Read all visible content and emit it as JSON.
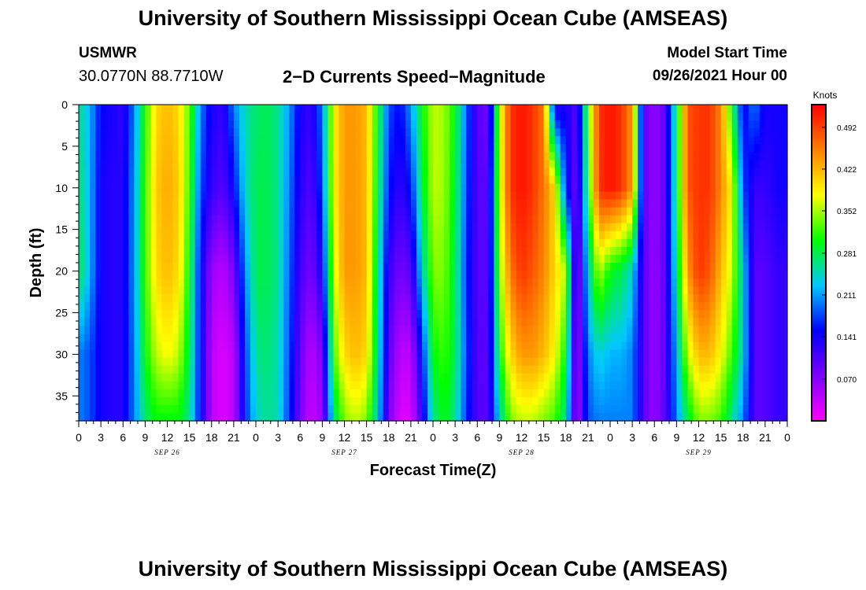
{
  "page": {
    "title": "University of Southern Mississippi Ocean Cube (AMSEAS)",
    "footer_title": "University of Southern Mississippi Ocean Cube (AMSEAS)",
    "station": "USMWR",
    "location": "30.0770N  88.7710W",
    "product": "2−D Currents Speed−Magnitude",
    "model_label": "Model Start Time",
    "model_time": "09/26/2021 Hour 00"
  },
  "chart_data": {
    "type": "heatmap",
    "title": "2-D Currents Speed-Magnitude",
    "xlabel": "Forecast Time(Z)",
    "ylabel": "Depth (ft)",
    "x_unit": "hours since 09/26/2021 00Z",
    "xlim": [
      0,
      96
    ],
    "ylim": [
      0,
      38
    ],
    "x_tick_values": [
      0,
      3,
      6,
      9,
      12,
      15,
      18,
      21,
      24,
      27,
      30,
      33,
      36,
      39,
      42,
      45,
      48,
      51,
      54,
      57,
      60,
      63,
      66,
      69,
      72,
      75,
      78,
      81,
      84,
      87,
      90,
      93,
      96
    ],
    "x_tick_labels": [
      "0",
      "3",
      "6",
      "9",
      "12",
      "15",
      "18",
      "21",
      "0",
      "3",
      "6",
      "9",
      "12",
      "15",
      "18",
      "21",
      "0",
      "3",
      "6",
      "9",
      "12",
      "15",
      "18",
      "21",
      "0",
      "3",
      "6",
      "9",
      "12",
      "15",
      "18",
      "21",
      "0"
    ],
    "date_labels": [
      {
        "hour": 12,
        "label": "SEP 26"
      },
      {
        "hour": 36,
        "label": "SEP 27"
      },
      {
        "hour": 60,
        "label": "SEP 28"
      },
      {
        "hour": 84,
        "label": "SEP 29"
      }
    ],
    "y_tick_values": [
      0,
      5,
      10,
      15,
      20,
      25,
      30,
      35
    ],
    "y_tick_labels": [
      "0",
      "5",
      "10",
      "15",
      "20",
      "25",
      "30",
      "35"
    ],
    "colorbar": {
      "title": "Knots",
      "range": [
        0,
        0.53
      ],
      "tick_values": [
        0.492,
        0.422,
        0.352,
        0.281,
        0.211,
        0.141,
        0.07
      ],
      "tick_labels": [
        "0.492",
        "0.422",
        "0.352",
        "0.281",
        "0.211",
        "0.141",
        "0.070"
      ],
      "colors": [
        "#ff00ff",
        "#7f00ff",
        "#0000ff",
        "#00c8ff",
        "#00ff00",
        "#ffff00",
        "#ff8000",
        "#ff0000"
      ]
    },
    "depths_ft": [
      0,
      10,
      20,
      30,
      38
    ],
    "time_hours": [
      0,
      1.5,
      3,
      4.5,
      6,
      7.5,
      9,
      10.5,
      12,
      13.5,
      15,
      16.5,
      18,
      19.5,
      21,
      22.5,
      24,
      25.5,
      27,
      28.5,
      30,
      31.5,
      33,
      34.5,
      36,
      37.5,
      39,
      40.5,
      42,
      43.5,
      45,
      46.5,
      48,
      49.5,
      51,
      52.5,
      54,
      55.5,
      57,
      58.5,
      60,
      61.5,
      63,
      64.5,
      66,
      67.5,
      69,
      70.5,
      72,
      73.5,
      75,
      76.5,
      78,
      79.5,
      81,
      82.5,
      84,
      85.5,
      87,
      88.5,
      90,
      91.5,
      93,
      94.5,
      96
    ],
    "speed_knots": [
      [
        0.26,
        0.22,
        0.15,
        0.14,
        0.12,
        0.2,
        0.31,
        0.4,
        0.42,
        0.4,
        0.33,
        0.2,
        0.14,
        0.12,
        0.2,
        0.25,
        0.27,
        0.28,
        0.26,
        0.21,
        0.14,
        0.12,
        0.2,
        0.38,
        0.44,
        0.44,
        0.42,
        0.3,
        0.18,
        0.15,
        0.21,
        0.3,
        0.36,
        0.35,
        0.3,
        0.19,
        0.1,
        0.08,
        0.36,
        0.5,
        0.52,
        0.5,
        0.46,
        0.12,
        0.14,
        0.1,
        0.32,
        0.5,
        0.52,
        0.5,
        0.44,
        0.1,
        0.06,
        0.1,
        0.28,
        0.48,
        0.5,
        0.5,
        0.45,
        0.3,
        0.14,
        0.2,
        0.14,
        0.14,
        0.14
      ],
      [
        0.27,
        0.22,
        0.14,
        0.13,
        0.13,
        0.21,
        0.32,
        0.41,
        0.43,
        0.41,
        0.32,
        0.18,
        0.12,
        0.1,
        0.15,
        0.24,
        0.28,
        0.28,
        0.26,
        0.2,
        0.13,
        0.1,
        0.18,
        0.38,
        0.44,
        0.44,
        0.42,
        0.29,
        0.16,
        0.12,
        0.16,
        0.28,
        0.36,
        0.35,
        0.29,
        0.18,
        0.1,
        0.1,
        0.36,
        0.5,
        0.52,
        0.5,
        0.46,
        0.4,
        0.16,
        0.08,
        0.3,
        0.5,
        0.52,
        0.5,
        0.44,
        0.1,
        0.06,
        0.1,
        0.28,
        0.48,
        0.5,
        0.5,
        0.45,
        0.38,
        0.18,
        0.12,
        0.12,
        0.14,
        0.14
      ],
      [
        0.28,
        0.22,
        0.14,
        0.13,
        0.13,
        0.21,
        0.32,
        0.4,
        0.42,
        0.4,
        0.3,
        0.15,
        0.06,
        0.04,
        0.08,
        0.2,
        0.28,
        0.28,
        0.26,
        0.19,
        0.11,
        0.08,
        0.14,
        0.36,
        0.44,
        0.44,
        0.42,
        0.27,
        0.12,
        0.08,
        0.1,
        0.24,
        0.34,
        0.34,
        0.28,
        0.17,
        0.1,
        0.1,
        0.34,
        0.46,
        0.5,
        0.48,
        0.45,
        0.4,
        0.36,
        0.05,
        0.24,
        0.36,
        0.3,
        0.28,
        0.24,
        0.1,
        0.06,
        0.1,
        0.26,
        0.44,
        0.5,
        0.48,
        0.42,
        0.36,
        0.24,
        0.1,
        0.1,
        0.12,
        0.12
      ],
      [
        0.2,
        0.18,
        0.14,
        0.13,
        0.13,
        0.2,
        0.3,
        0.36,
        0.38,
        0.36,
        0.28,
        0.15,
        0.04,
        0.02,
        0.04,
        0.17,
        0.26,
        0.27,
        0.25,
        0.18,
        0.09,
        0.04,
        0.08,
        0.32,
        0.4,
        0.42,
        0.4,
        0.26,
        0.1,
        0.04,
        0.04,
        0.16,
        0.3,
        0.32,
        0.28,
        0.18,
        0.1,
        0.1,
        0.3,
        0.4,
        0.44,
        0.44,
        0.42,
        0.38,
        0.3,
        0.04,
        0.2,
        0.24,
        0.22,
        0.22,
        0.2,
        0.1,
        0.06,
        0.1,
        0.22,
        0.36,
        0.42,
        0.42,
        0.38,
        0.32,
        0.24,
        0.1,
        0.1,
        0.12,
        0.12
      ],
      [
        0.2,
        0.18,
        0.14,
        0.13,
        0.13,
        0.2,
        0.27,
        0.3,
        0.3,
        0.3,
        0.26,
        0.15,
        0.04,
        0.02,
        0.04,
        0.16,
        0.24,
        0.26,
        0.25,
        0.17,
        0.08,
        0.03,
        0.06,
        0.26,
        0.34,
        0.36,
        0.34,
        0.24,
        0.08,
        0.02,
        0.02,
        0.12,
        0.26,
        0.3,
        0.26,
        0.17,
        0.1,
        0.1,
        0.24,
        0.34,
        0.36,
        0.36,
        0.34,
        0.32,
        0.26,
        0.04,
        0.18,
        0.2,
        0.2,
        0.2,
        0.2,
        0.1,
        0.06,
        0.1,
        0.2,
        0.28,
        0.34,
        0.34,
        0.32,
        0.26,
        0.2,
        0.1,
        0.1,
        0.12,
        0.12
      ]
    ]
  }
}
